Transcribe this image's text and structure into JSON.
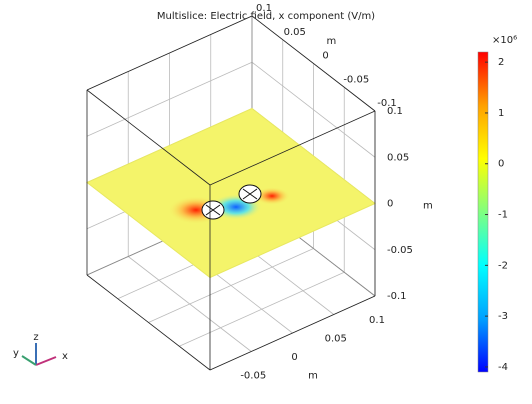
{
  "chart_data": {
    "type": "slice3d",
    "title": "Multislice: Electric field, x component (V/m)",
    "xlim": [
      -0.1,
      0.1
    ],
    "ylim": [
      -0.1,
      0.1
    ],
    "zlim": [
      -0.1,
      0.1
    ],
    "xticks": [
      -0.05,
      0,
      0.05,
      0.1
    ],
    "yticks": [
      0.1,
      0.05,
      0,
      -0.05,
      -0.1
    ],
    "zticks": [
      0.1,
      0.05,
      0,
      -0.05,
      -0.1
    ],
    "x_label": "m",
    "y_label": "m",
    "z_label": "m",
    "slice_z": 0,
    "colorbar": {
      "multiplier": "×10⁶",
      "clim": [
        -4.1,
        2.2
      ],
      "ticks": [
        2,
        1,
        0,
        -1,
        -2,
        -3,
        -4
      ],
      "colormap": [
        "#0000ff",
        "#00a0ff",
        "#00ffff",
        "#80ff80",
        "#ffff00",
        "#ffa000",
        "#ff0000"
      ]
    },
    "triad": {
      "x": "x",
      "y": "y",
      "z": "z"
    },
    "grid": true
  }
}
